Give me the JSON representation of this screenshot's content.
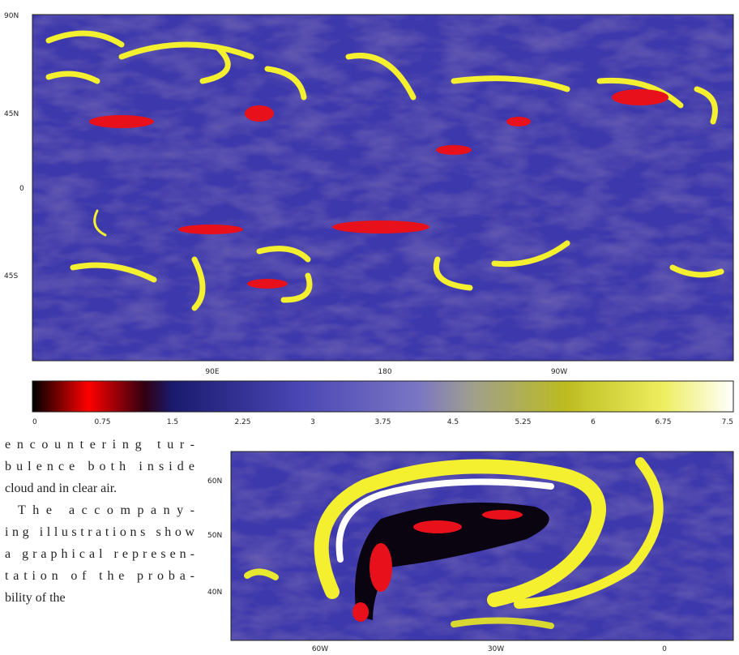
{
  "figure1": {
    "lat_labels": [
      "90N",
      "45N",
      "0",
      "45S"
    ],
    "lon_labels": [
      "90E",
      "180",
      "90W"
    ]
  },
  "colorbar": {
    "ticks": [
      "0",
      "0.75",
      "1.5",
      "2.25",
      "3",
      "3.75",
      "4.5",
      "5.25",
      "6",
      "6.75",
      "7.5"
    ]
  },
  "body_text": {
    "lines": [
      "encountering tur-",
      "bulence both inside",
      "cloud and in clear air.",
      "The accompany-",
      "ing illustrations show",
      "a graphical represen-",
      "tation of the proba-",
      "bility of the"
    ]
  },
  "figure2": {
    "lat_labels": [
      "60N",
      "50N",
      "40N"
    ],
    "lon_labels": [
      "60W",
      "30W",
      "0"
    ]
  }
}
